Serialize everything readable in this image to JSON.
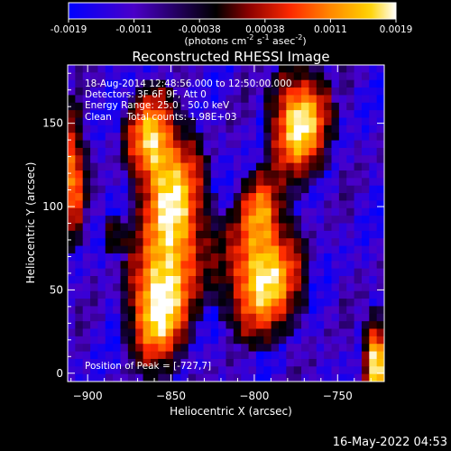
{
  "colorbar": {
    "ticks": [
      "-0.0019",
      "-0.0011",
      "-0.00038",
      "0.00038",
      "0.0011",
      "0.0019"
    ],
    "units_main": "(photons cm",
    "units_exp1": "-2",
    "units_mid": " s",
    "units_exp2": "-1",
    "units_end": " asec",
    "units_exp3": "-2",
    "units_close": ")",
    "palette": [
      "#0000ff",
      "#4a00c8",
      "#000000",
      "#8b0000",
      "#ff2a00",
      "#ff8800",
      "#ffd200",
      "#ffffff"
    ]
  },
  "chart_data": {
    "type": "heatmap",
    "title": "Reconstructed RHESSI Image",
    "xlabel": "Heliocentric X (arcsec)",
    "ylabel": "Heliocentric Y (arcsec)",
    "xlim": [
      -912,
      -722
    ],
    "ylim": [
      -5,
      185
    ],
    "xticks": [
      -900,
      -850,
      -800,
      -750
    ],
    "yticks": [
      0,
      50,
      100,
      150
    ],
    "xtick_labels": [
      "−900",
      "−850",
      "−800",
      "−750"
    ],
    "ytick_labels": [
      "0",
      "50",
      "100",
      "150"
    ],
    "color_range": [
      -0.0019,
      0.0019
    ],
    "sources": [
      {
        "x": -858,
        "y": 40,
        "sx": 11,
        "sy": 22,
        "amp": 1.0
      },
      {
        "x": -848,
        "y": 95,
        "sx": 12,
        "sy": 30,
        "amp": 0.95
      },
      {
        "x": -862,
        "y": 140,
        "sx": 9,
        "sy": 18,
        "amp": 0.8
      },
      {
        "x": -795,
        "y": 58,
        "sx": 14,
        "sy": 22,
        "amp": 1.0
      },
      {
        "x": -796,
        "y": 98,
        "sx": 8,
        "sy": 14,
        "amp": 0.55
      },
      {
        "x": -773,
        "y": 150,
        "sx": 11,
        "sy": 20,
        "amp": 1.0
      },
      {
        "x": -727,
        "y": 7,
        "sx": 5,
        "sy": 16,
        "amp": 1.0
      },
      {
        "x": -909,
        "y": 120,
        "sx": 5,
        "sy": 25,
        "amp": 0.7
      },
      {
        "x": -885,
        "y": 85,
        "sx": 4,
        "sy": 8,
        "amp": 0.35
      }
    ],
    "annotations": {
      "line1": "18-Aug-2014 12:48:56.000 to 12:50:00.000",
      "line2": "Detectors: 3F 6F 9F, Att 0",
      "line3": "Energy Range: 25.0 - 50.0 keV",
      "line4": "Clean     Total counts: 1.98E+03",
      "peak": "Position of Peak = [-727,7]"
    }
  },
  "footer": {
    "timestamp": "16-May-2022 04:53"
  }
}
